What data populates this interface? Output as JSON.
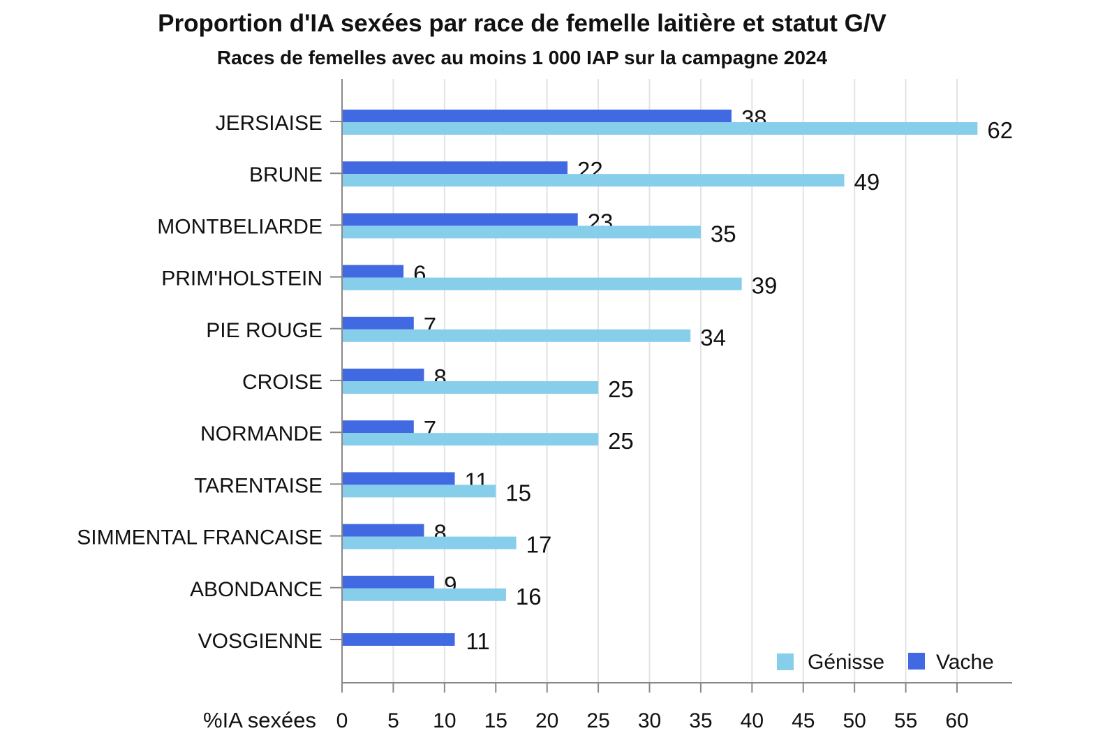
{
  "chart_data": {
    "type": "bar",
    "orientation": "horizontal",
    "title": "Proportion d'IA sexées par race de femelle laitière et statut G/V",
    "subtitle": "Races de femelles avec au moins 1 000 IAP sur la campagne 2024",
    "xlabel": "%IA sexées",
    "ylabel": "",
    "xlim": [
      0,
      65
    ],
    "xticks": [
      0,
      5,
      10,
      15,
      20,
      25,
      30,
      35,
      40,
      45,
      50,
      55,
      60
    ],
    "grid": true,
    "legend_position": "bottom-right",
    "categories": [
      "JERSIAISE",
      "BRUNE",
      "MONTBELIARDE",
      "PRIM'HOLSTEIN",
      "PIE ROUGE",
      "CROISE",
      "NORMANDE",
      "TARENTAISE",
      "SIMMENTAL FRANCAISE",
      "ABONDANCE",
      "VOSGIENNE"
    ],
    "series": [
      {
        "name": "Vache",
        "color": "#4169E1",
        "values": [
          38,
          22,
          23,
          6,
          7,
          8,
          7,
          11,
          8,
          9,
          11
        ]
      },
      {
        "name": "Génisse",
        "color": "#87CEEB",
        "values": [
          62,
          49,
          35,
          39,
          34,
          25,
          25,
          15,
          17,
          16,
          null
        ]
      }
    ],
    "legend_order": [
      "Génisse",
      "Vache"
    ]
  }
}
